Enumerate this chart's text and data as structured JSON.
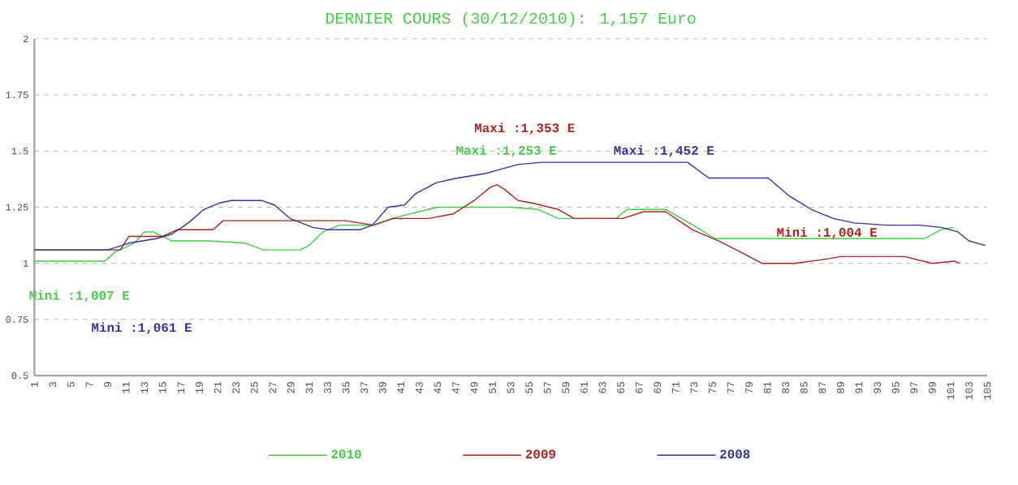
{
  "chart_data": {
    "type": "line",
    "title": "DERNIER COURS (30/12/2010): 1,157 Euro",
    "xlim": [
      1,
      105
    ],
    "xticks": [
      1,
      3,
      5,
      7,
      9,
      11,
      13,
      15,
      17,
      19,
      21,
      23,
      25,
      27,
      29,
      31,
      33,
      35,
      37,
      39,
      41,
      43,
      45,
      47,
      49,
      51,
      53,
      55,
      57,
      59,
      61,
      63,
      65,
      67,
      69,
      71,
      73,
      75,
      77,
      79,
      81,
      83,
      85,
      87,
      89,
      91,
      93,
      95,
      97,
      99,
      101,
      103,
      105
    ],
    "ylim": [
      0.5,
      2
    ],
    "yticks": [
      0.5,
      0.75,
      1,
      1.25,
      1.5,
      1.75,
      2
    ],
    "grid": "y",
    "legend": "bottom",
    "annotations": [
      "Maxi :1,353 E",
      "Maxi :1,253 E",
      "Maxi :1,452 E",
      "Mini :1,004 E",
      "Mini :1,007 E",
      "Mini :1,061 E"
    ],
    "series": [
      {
        "name": "2010",
        "color": "#44cc44",
        "x": [
          1,
          8.7,
          9.8,
          11.9,
          13,
          14,
          15,
          16,
          20,
          24,
          26,
          30,
          31,
          32.5,
          34.3,
          38,
          40,
          43,
          45,
          53,
          56,
          58.2,
          64.5,
          65.7,
          69.9,
          72.9,
          75.3,
          98.1,
          100,
          101.3
        ],
        "values": [
          1.01,
          1.01,
          1.05,
          1.09,
          1.14,
          1.14,
          1.12,
          1.1,
          1.1,
          1.09,
          1.06,
          1.06,
          1.08,
          1.14,
          1.17,
          1.17,
          1.2,
          1.23,
          1.25,
          1.25,
          1.24,
          1.2,
          1.2,
          1.24,
          1.24,
          1.17,
          1.11,
          1.11,
          1.15,
          1.16
        ]
      },
      {
        "name": "2009",
        "color": "#aa2222",
        "x": [
          1,
          10.4,
          11.3,
          15,
          16.6,
          20.5,
          21.6,
          35,
          38,
          40.2,
          44,
          46.7,
          49,
          50.8,
          51.5,
          52.3,
          53.8,
          55.2,
          58.2,
          59.9,
          65.2,
          67.5,
          69.9,
          72.8,
          75.7,
          78.1,
          80.4,
          84,
          87.6,
          89,
          96,
          99,
          101.4,
          102
        ],
        "values": [
          1.06,
          1.06,
          1.12,
          1.12,
          1.15,
          1.15,
          1.19,
          1.19,
          1.17,
          1.2,
          1.2,
          1.22,
          1.28,
          1.34,
          1.35,
          1.33,
          1.28,
          1.27,
          1.24,
          1.2,
          1.2,
          1.23,
          1.23,
          1.15,
          1.1,
          1.05,
          1.0,
          1.0,
          1.02,
          1.03,
          1.03,
          1.0,
          1.01,
          1.0
        ]
      },
      {
        "name": "2008",
        "color": "#333399",
        "x": [
          1,
          9,
          11.3,
          14.3,
          16,
          17.8,
          19.5,
          21.3,
          22.5,
          25.8,
          27.2,
          28.9,
          31.4,
          33,
          36.6,
          37.9,
          39.6,
          41.4,
          42.6,
          44.9,
          47.2,
          50.2,
          52,
          53.8,
          56.3,
          72.3,
          74.6,
          81.1,
          83.4,
          85.8,
          88.2,
          90.5,
          94,
          97.6,
          100,
          101.8,
          103,
          104.8
        ],
        "values": [
          1.06,
          1.06,
          1.09,
          1.11,
          1.13,
          1.18,
          1.24,
          1.27,
          1.28,
          1.28,
          1.26,
          1.2,
          1.16,
          1.15,
          1.15,
          1.17,
          1.25,
          1.26,
          1.31,
          1.36,
          1.38,
          1.4,
          1.42,
          1.44,
          1.45,
          1.45,
          1.38,
          1.38,
          1.3,
          1.24,
          1.2,
          1.18,
          1.17,
          1.17,
          1.16,
          1.14,
          1.1,
          1.08
        ]
      }
    ]
  }
}
